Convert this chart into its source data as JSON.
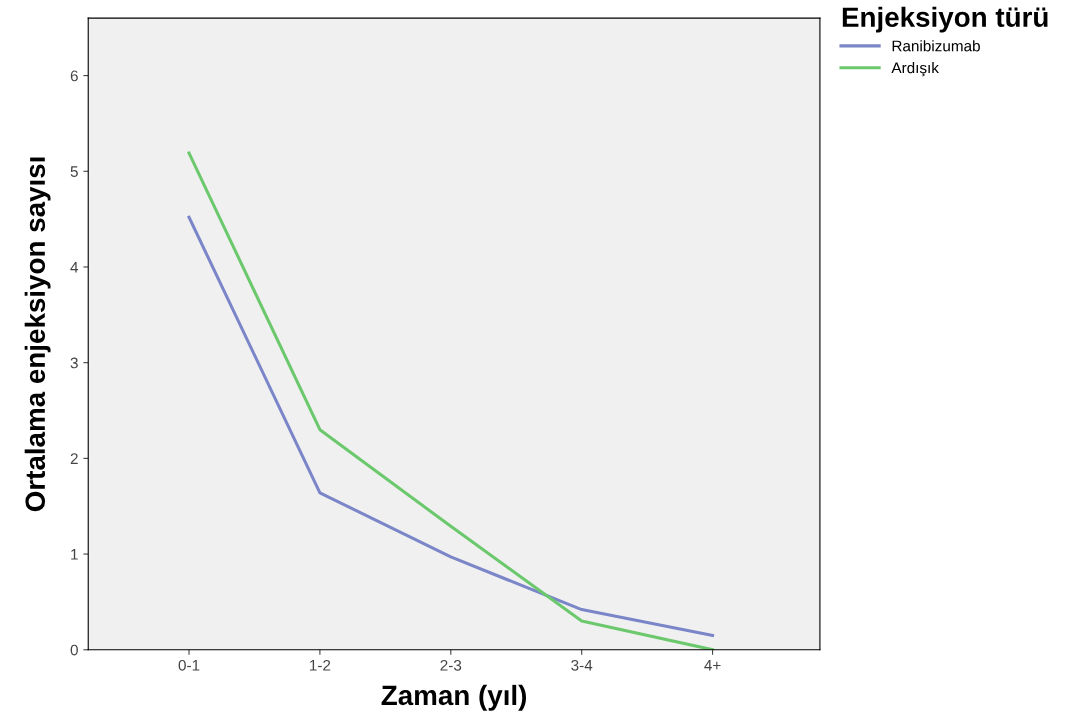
{
  "chart_data": {
    "type": "line",
    "xlabel": "Zaman (yıl)",
    "ylabel": "Ortalama enjeksiyon sayısı",
    "legend_title": "Enjeksiyon türü",
    "categories": [
      "0-1",
      "1-2",
      "2-3",
      "3-4",
      "4+"
    ],
    "series": [
      {
        "name": "Ranibizumab",
        "color": "#7b86c8",
        "values": [
          4.52,
          1.64,
          0.97,
          0.42,
          0.15
        ]
      },
      {
        "name": "Ardışık",
        "color": "#6cc86c",
        "values": [
          5.19,
          2.3,
          1.29,
          0.3,
          0.0
        ]
      }
    ],
    "ylim": [
      0,
      6.6
    ],
    "yticks": [
      0,
      1,
      2,
      3,
      4,
      5,
      6
    ],
    "grid": false,
    "legend": "top right",
    "marker": "none",
    "line_style": "solid"
  }
}
